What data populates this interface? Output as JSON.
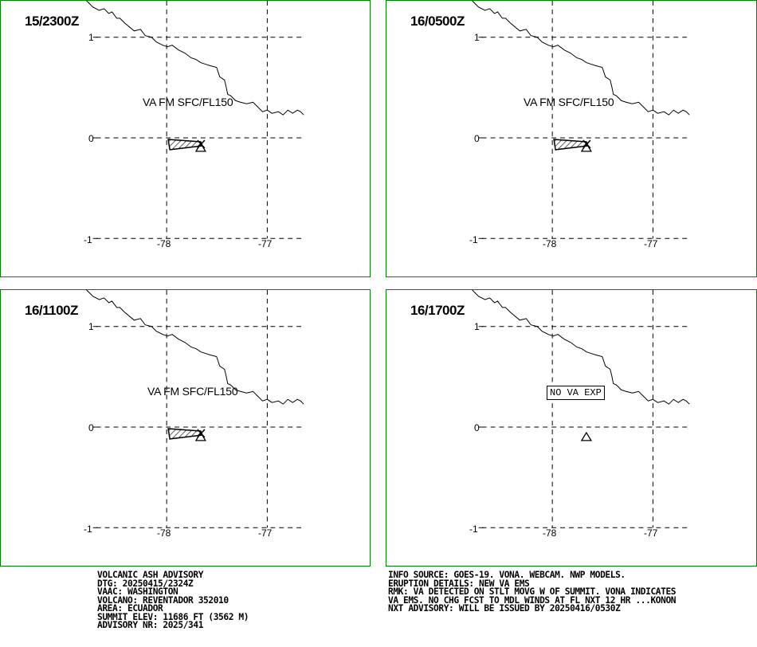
{
  "panels": [
    {
      "time": "15/2300Z",
      "va_label": "VA FM SFC/FL150",
      "has_ash": true
    },
    {
      "time": "16/0500Z",
      "va_label": "VA FM SFC/FL150",
      "has_ash": true
    },
    {
      "time": "16/1100Z",
      "va_label": "VA FM SFC/FL150",
      "has_ash": true
    },
    {
      "time": "16/1700Z",
      "va_label": "NO VA EXP",
      "has_ash": false
    }
  ],
  "axes": {
    "lat_ticks": [
      "1",
      "0",
      "-1"
    ],
    "lon_ticks": [
      "-78",
      "-77"
    ]
  },
  "advisory_left": [
    "VOLCANIC ASH ADVISORY",
    "DTG: 20250415/2324Z",
    "VAAC: WASHINGTON",
    "VOLCANO: REVENTADOR 352010",
    "AREA: ECUADOR",
    "SUMMIT ELEV: 11686 FT (3562 M)",
    "ADVISORY NR: 2025/341"
  ],
  "advisory_right": [
    "INFO SOURCE: GOES-19. VONA. WEBCAM. NWP MODELS.",
    "ERUPTION DETAILS: NEW VA EMS",
    "RMK: VA DETECTED ON STLT MOVG W OF SUMMIT. VONA INDICATES",
    "VA EMS. NO CHG FCST TO MDL WINDS AT FL NXT 12 HR ...KONON",
    "NXT ADVISORY: WILL BE ISSUED BY 20250416/0530Z"
  ],
  "colors": {
    "frame": "#008000",
    "ink": "#000000"
  }
}
